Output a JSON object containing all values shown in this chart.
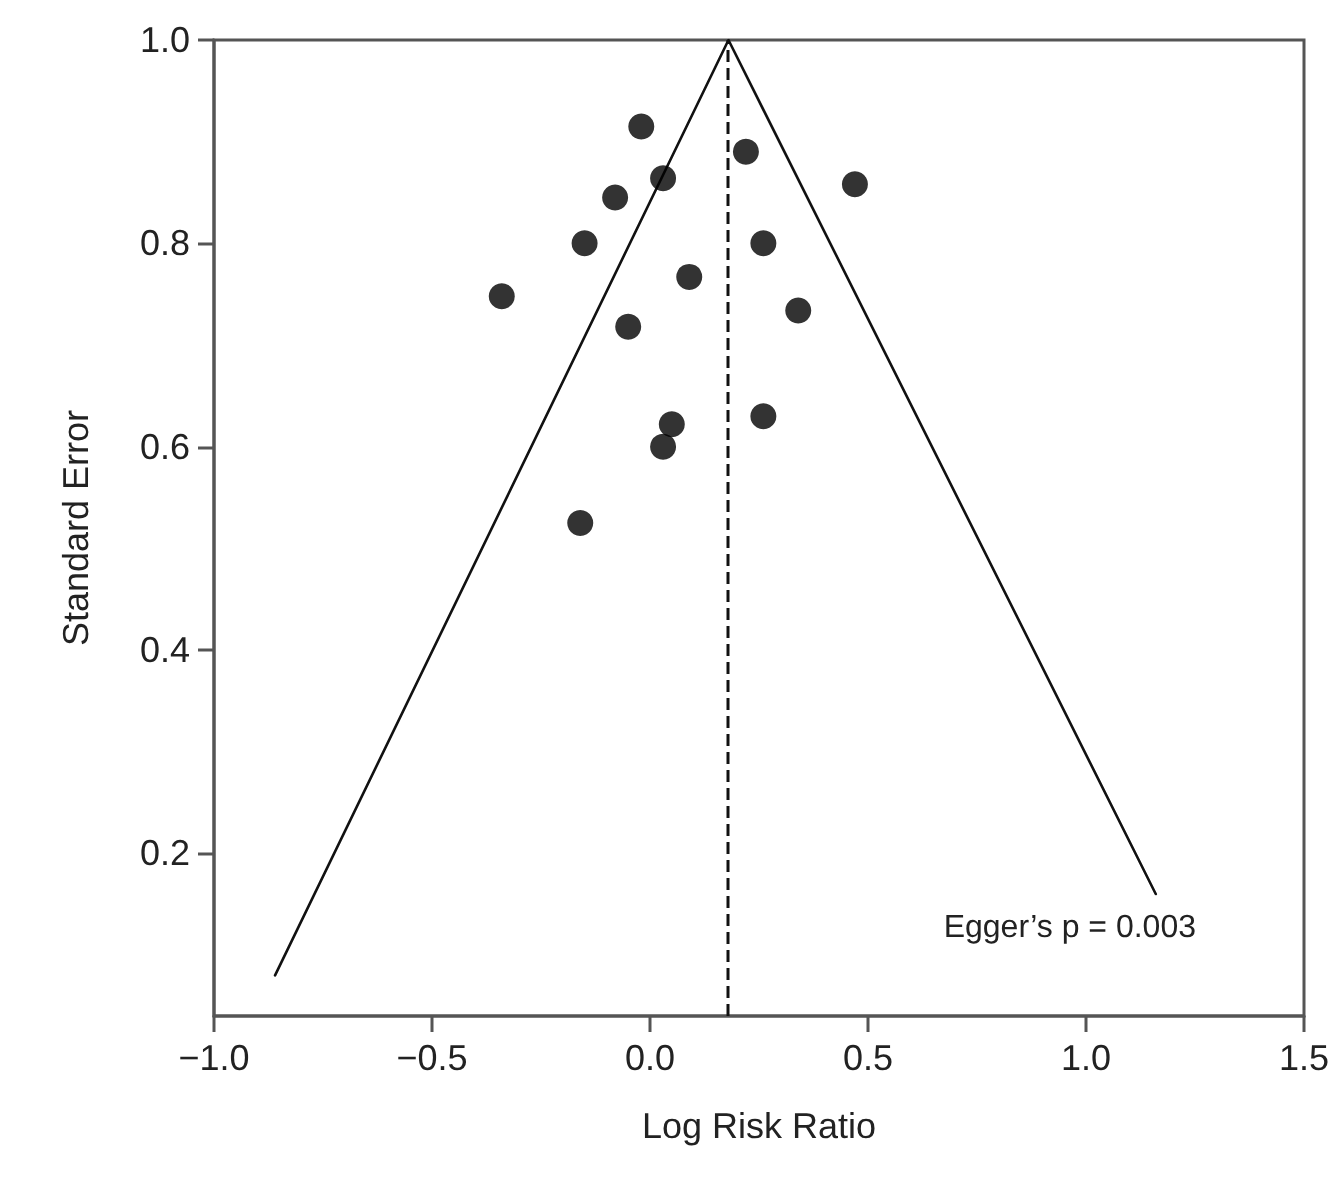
{
  "chart_data": {
    "type": "scatter",
    "xlabel": "Log Risk Ratio",
    "ylabel": "Standard Error",
    "xlim": [
      -1.0,
      1.5
    ],
    "xticks": [
      {
        "value": -1.0,
        "label": "−1.0"
      },
      {
        "value": -0.5,
        "label": "−0.5"
      },
      {
        "value": 0,
        "label": "0.0"
      },
      {
        "value": 0.5,
        "label": "0.5"
      },
      {
        "value": 1.0,
        "label": "1.0"
      },
      {
        "value": 1.5,
        "label": "1.5"
      }
    ],
    "ylim": [
      0.04,
      1.0
    ],
    "yticks": [
      {
        "value": 0.2,
        "label": "0.2"
      },
      {
        "value": 0.4,
        "label": "0.4"
      },
      {
        "value": 0.6,
        "label": "0.6"
      },
      {
        "value": 0.8,
        "label": "0.8"
      },
      {
        "value": 1.0,
        "label": "1.0"
      }
    ],
    "grid": false,
    "marker": "circle",
    "series": [
      {
        "type": "line",
        "color": "#111111",
        "marker": "none",
        "x": [
          -0.86,
          0.18,
          1.16
        ],
        "values": [
          0.08,
          1.0,
          0.16
        ]
      },
      {
        "color": "#000000",
        "x": [
          -0.02,
          0.22,
          0.03,
          0.47,
          -0.08,
          -0.15,
          0.26,
          0.09,
          -0.34,
          0.34,
          -0.05,
          0.26,
          0.05,
          0.03,
          -0.16
        ],
        "values": [
          0.915,
          0.89,
          0.864,
          0.858,
          0.845,
          0.8,
          0.8,
          0.767,
          0.748,
          0.734,
          0.718,
          0.63,
          0.622,
          0.6,
          0.525
        ]
      }
    ],
    "ref_lines": [
      {
        "axis": "x",
        "value": 0.18,
        "line_style": "dashed",
        "color": "#111111"
      }
    ],
    "annotations": [
      "Egger’s p = 0.003"
    ]
  }
}
